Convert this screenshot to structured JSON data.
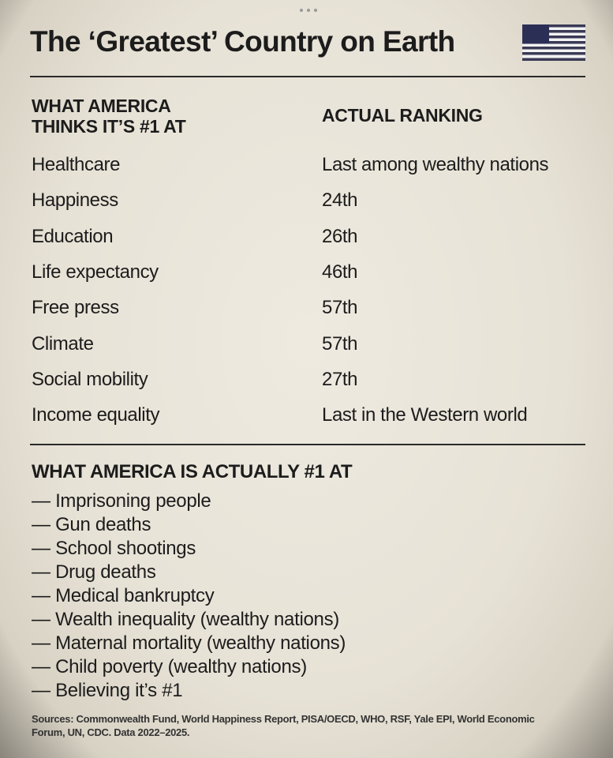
{
  "header": {
    "title": "The ‘Greatest’ Country on Earth"
  },
  "table": {
    "columns": [
      "WHAT AMERICA THINKS IT’S #1 AT",
      "ACTUAL RANKING"
    ],
    "rows": [
      [
        "Healthcare",
        "Last among wealthy nations"
      ],
      [
        "Happiness",
        "24th"
      ],
      [
        "Education",
        "26th"
      ],
      [
        "Life expectancy",
        "46th"
      ],
      [
        "Free press",
        "57th"
      ],
      [
        "Climate",
        "57th"
      ],
      [
        "Social mobility",
        "27th"
      ],
      [
        "Income equality",
        "Last in the Western world"
      ]
    ]
  },
  "actual": {
    "heading": "WHAT AMERICA IS ACTUALLY #1 AT",
    "items": [
      "— Imprisoning people",
      "— Gun deaths",
      "— School shootings",
      "— Drug deaths",
      "— Medical bankruptcy",
      "— Wealth inequality (wealthy nations)",
      "— Maternal mortality (wealthy nations)",
      "— Child poverty (wealthy nations)",
      "— Believing it’s #1"
    ]
  },
  "footer": {
    "sources": "Sources: Commonwealth Fund, World Happiness Report, PISA/OECD, WHO, RSF, Yale EPI, World Economic Forum, UN, CDC. Data 2022–2025."
  }
}
